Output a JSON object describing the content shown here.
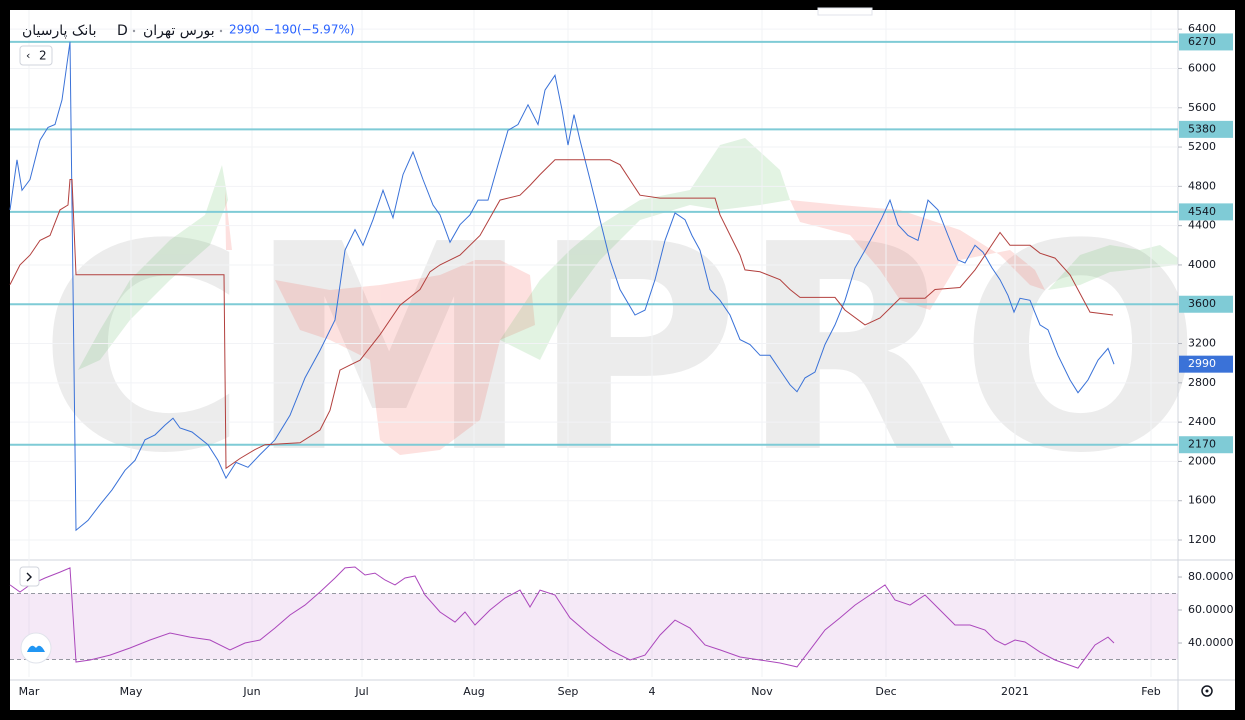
{
  "chart_data": [
    {
      "type": "line",
      "symbol": "بانک پارسیان",
      "interval": "D",
      "exchange": "بورس تهران",
      "last": 2990,
      "change": "−190",
      "change_pct": "(−5.97%)",
      "watermark": "CMPRO",
      "pane_badge": "2",
      "xlim": [
        0,
        1168
      ],
      "ylim": [
        1017,
        6595
      ],
      "yticks": [
        6400,
        6000,
        5600,
        5200,
        4800,
        4400,
        4000,
        3600,
        3200,
        2800,
        2400,
        2000,
        1600,
        1200
      ],
      "xticks": [
        {
          "value": 19,
          "label": "Mar"
        },
        {
          "value": 121,
          "label": "May"
        },
        {
          "value": 242,
          "label": "Jun"
        },
        {
          "value": 352,
          "label": "Jul"
        },
        {
          "value": 464,
          "label": "Aug"
        },
        {
          "value": 558,
          "label": "Sep"
        },
        {
          "value": 642,
          "label": "4"
        },
        {
          "value": 752,
          "label": "Nov"
        },
        {
          "value": 876,
          "label": "Dec"
        },
        {
          "value": 1005,
          "label": "2021"
        },
        {
          "value": 1141,
          "label": "Feb"
        }
      ],
      "grid": true,
      "hlines": {
        "color": "#7fcbd6",
        "values": [
          6270,
          5380,
          4540,
          3600,
          2170
        ]
      },
      "series": [
        {
          "color": "#3a72d8",
          "x": [
            0,
            7,
            12,
            20,
            30,
            38,
            45,
            52,
            60,
            66,
            78,
            90,
            102,
            115,
            125,
            135,
            145,
            155,
            163,
            170,
            182,
            198,
            208,
            216,
            226,
            238,
            250,
            265,
            280,
            295,
            310,
            325,
            335,
            345,
            353,
            363,
            373,
            383,
            393,
            403,
            413,
            423,
            430,
            440,
            450,
            460,
            468,
            478,
            488,
            498,
            508,
            518,
            528,
            535,
            545,
            552,
            558,
            564,
            570,
            580,
            590,
            600,
            610,
            625,
            635,
            645,
            655,
            665,
            675,
            682,
            690,
            700,
            710,
            720,
            730,
            740,
            750,
            760,
            770,
            780,
            787,
            795,
            805,
            815,
            825,
            835,
            845,
            855,
            865,
            872,
            880,
            888,
            898,
            908,
            918,
            928,
            938,
            948,
            955,
            965,
            973,
            982,
            990,
            998,
            1004,
            1010,
            1020,
            1030,
            1038,
            1048,
            1060,
            1068,
            1078,
            1088,
            1098,
            1104
          ],
          "values": [
            4560,
            5070,
            4760,
            4870,
            5270,
            5400,
            5430,
            5680,
            6270,
            1300,
            1400,
            1560,
            1710,
            1910,
            2010,
            2220,
            2270,
            2370,
            2440,
            2340,
            2300,
            2170,
            2010,
            1830,
            1990,
            1940,
            2070,
            2220,
            2470,
            2850,
            3130,
            3440,
            4150,
            4360,
            4200,
            4460,
            4760,
            4480,
            4920,
            5150,
            4870,
            4610,
            4510,
            4230,
            4410,
            4510,
            4660,
            4660,
            5020,
            5370,
            5430,
            5630,
            5430,
            5780,
            5930,
            5580,
            5220,
            5530,
            5270,
            4870,
            4460,
            4050,
            3750,
            3490,
            3540,
            3850,
            4250,
            4530,
            4460,
            4300,
            4150,
            3750,
            3640,
            3490,
            3240,
            3190,
            3080,
            3080,
            2930,
            2780,
            2710,
            2850,
            2910,
            3190,
            3390,
            3640,
            3970,
            4150,
            4340,
            4480,
            4660,
            4410,
            4300,
            4250,
            4660,
            4560,
            4300,
            4050,
            4020,
            4200,
            4130,
            3970,
            3850,
            3690,
            3520,
            3660,
            3640,
            3390,
            3340,
            3080,
            2830,
            2700,
            2830,
            3030,
            3150,
            2990
          ]
        },
        {
          "color": "#b2403e",
          "x": [
            0,
            10,
            20,
            30,
            40,
            50,
            58,
            60,
            62,
            66,
            214,
            216,
            230,
            245,
            255,
            290,
            310,
            320,
            330,
            340,
            350,
            370,
            390,
            410,
            420,
            430,
            450,
            470,
            490,
            510,
            520,
            530,
            545,
            600,
            610,
            630,
            650,
            705,
            710,
            730,
            735,
            750,
            770,
            780,
            790,
            825,
            835,
            855,
            870,
            890,
            915,
            925,
            950,
            965,
            975,
            990,
            1000,
            1020,
            1030,
            1045,
            1060,
            1080,
            1103
          ],
          "values": [
            3800,
            4000,
            4100,
            4250,
            4300,
            4560,
            4610,
            4870,
            4870,
            3900,
            3900,
            1930,
            2030,
            2120,
            2170,
            2190,
            2320,
            2520,
            2930,
            2980,
            3030,
            3290,
            3590,
            3750,
            3930,
            4000,
            4100,
            4300,
            4660,
            4710,
            4810,
            4920,
            5070,
            5070,
            5020,
            4710,
            4680,
            4680,
            4510,
            4100,
            3950,
            3930,
            3850,
            3750,
            3670,
            3670,
            3540,
            3390,
            3460,
            3660,
            3660,
            3750,
            3770,
            3950,
            4100,
            4330,
            4200,
            4200,
            4120,
            4070,
            3900,
            3520,
            3490
          ]
        }
      ]
    },
    {
      "type": "line",
      "xlim": [
        0,
        1168
      ],
      "ylim": [
        19.4,
        88.5
      ],
      "yticks": [
        {
          "value": 80,
          "label": "80.0000"
        },
        {
          "value": 60,
          "label": "60.0000"
        },
        {
          "value": 40,
          "label": "40.0000"
        }
      ],
      "bands": [
        70,
        30
      ],
      "band_color": "#9c27b0",
      "series": [
        {
          "color": "#ab47bc",
          "x": [
            0,
            10,
            20,
            35,
            50,
            60,
            66,
            80,
            100,
            120,
            140,
            160,
            180,
            200,
            220,
            235,
            250,
            265,
            280,
            295,
            310,
            325,
            335,
            345,
            355,
            365,
            375,
            385,
            395,
            405,
            415,
            430,
            445,
            455,
            465,
            480,
            495,
            510,
            520,
            530,
            545,
            560,
            580,
            600,
            620,
            635,
            650,
            665,
            680,
            695,
            710,
            730,
            750,
            770,
            787,
            800,
            815,
            830,
            845,
            860,
            875,
            885,
            900,
            915,
            930,
            945,
            960,
            975,
            985,
            995,
            1005,
            1015,
            1030,
            1045,
            1068,
            1085,
            1098,
            1104
          ],
          "values": [
            75.2,
            70.9,
            75.2,
            79.4,
            83.0,
            85.5,
            28.5,
            29.7,
            32.7,
            37.0,
            41.8,
            46.1,
            43.6,
            41.8,
            35.8,
            40.0,
            41.8,
            49.1,
            57.0,
            63.0,
            70.9,
            79.4,
            85.5,
            86.1,
            81.2,
            82.4,
            78.2,
            75.2,
            79.4,
            80.6,
            69.1,
            58.8,
            52.7,
            58.8,
            50.9,
            60.0,
            67.3,
            72.1,
            61.8,
            72.1,
            69.1,
            55.2,
            44.8,
            35.8,
            29.7,
            32.7,
            44.8,
            53.9,
            49.1,
            38.8,
            35.8,
            31.5,
            29.7,
            27.9,
            25.5,
            35.8,
            47.9,
            55.2,
            63.0,
            69.1,
            75.2,
            66.1,
            63.0,
            69.1,
            60.0,
            50.9,
            50.9,
            47.9,
            41.8,
            38.8,
            41.8,
            40.6,
            34.5,
            29.7,
            24.8,
            38.8,
            43.6,
            40.0
          ]
        }
      ]
    }
  ]
}
